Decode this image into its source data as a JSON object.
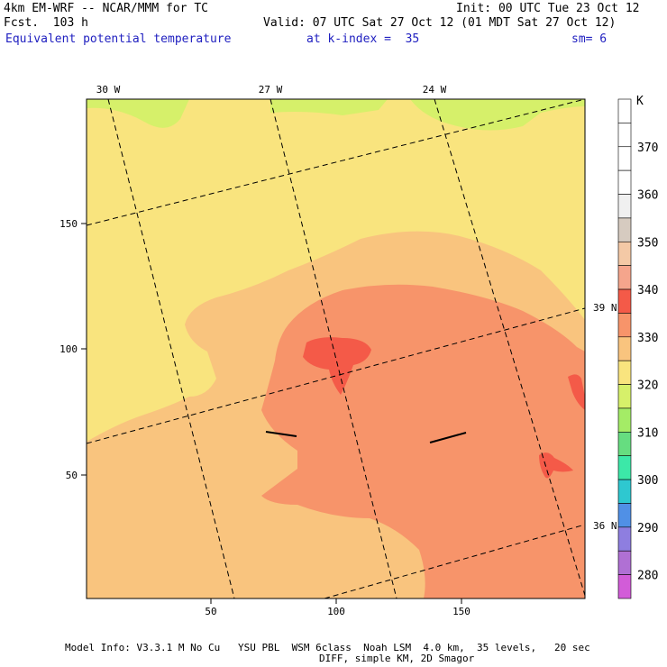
{
  "header": {
    "model_title": "4km EM-WRF -- NCAR/MMM for TC",
    "forecast": "Fcst.  103 h",
    "init": "Init: 00 UTC Tue 23 Oct 12",
    "valid": "Valid: 07 UTC Sat 27 Oct 12 (01 MDT Sat 27 Oct 12)",
    "field": "Equivalent potential temperature",
    "level": "at k-index =  35",
    "smoothing": "sm= 6"
  },
  "map": {
    "x_ticks": [
      "50",
      "100",
      "150"
    ],
    "y_ticks": [
      "150",
      "100",
      "50"
    ],
    "longitude_labels": [
      "30 W",
      "27 W",
      "24 W"
    ],
    "latitude_labels": [
      "39 N",
      "36 N"
    ]
  },
  "colorbar": {
    "unit": "K",
    "levels": [
      "370",
      "360",
      "350",
      "340",
      "330",
      "320",
      "310",
      "300",
      "290",
      "280"
    ],
    "colors": [
      "#ffffff",
      "#ffffff",
      "#ffffff",
      "#ffffff",
      "#f0f0f0",
      "#d6cbc0",
      "#f4c9a6",
      "#f5a58c",
      "#f45a48",
      "#f7946a",
      "#f9c47e",
      "#f9e47e",
      "#d6f06a",
      "#a4ec66",
      "#66dd80",
      "#3ce8a8",
      "#2ec8d0",
      "#5090e6",
      "#8e7ee0",
      "#b070d4",
      "#d25cd8"
    ]
  },
  "footer": {
    "line1": "Model Info: V3.3.1 M No Cu   YSU PBL  WSM 6class  Noah LSM  4.0 km,  35 levels,   20 sec",
    "line2": "DIFF, simple KM, 2D Smagor"
  }
}
